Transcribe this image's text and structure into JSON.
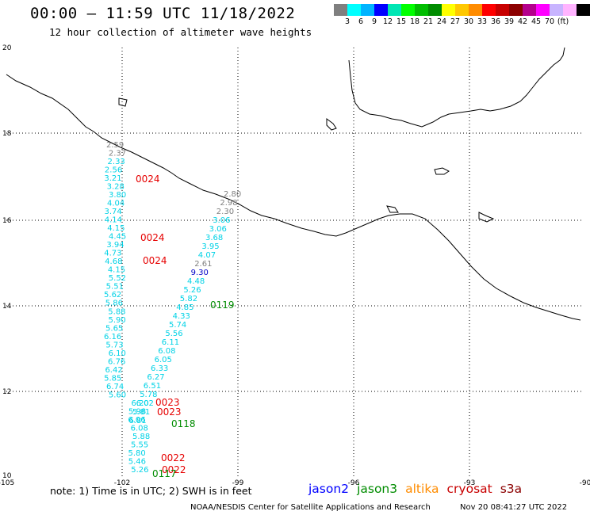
{
  "header": {
    "title": "00:00 – 11:59 UTC 11/18/2022",
    "subtitle": "12 hour collection of altimeter wave heights"
  },
  "legend": {
    "colors": [
      "#7f7f7f",
      "#00ffff",
      "#00b4ff",
      "#0000ff",
      "#00e6b4",
      "#00ff00",
      "#00be00",
      "#008c00",
      "#ffff00",
      "#ffc800",
      "#ff8c00",
      "#ff0000",
      "#c80000",
      "#8c0000",
      "#b4008c",
      "#ff00ff",
      "#c8b4ff",
      "#ffb4ff",
      "#000000"
    ],
    "labels": [
      "3",
      "6",
      "9",
      "12",
      "15",
      "18",
      "21",
      "24",
      "27",
      "30",
      "33",
      "36",
      "39",
      "42",
      "45",
      "70",
      "(ft)"
    ]
  },
  "axes": {
    "x_ticks": [
      "-105",
      "-102",
      "-99",
      "-96",
      "-93",
      "-90"
    ],
    "y_ticks": [
      "20",
      "18",
      "16",
      "14",
      "12",
      "10"
    ]
  },
  "passes": {
    "west_labels": [
      "2.59",
      "2.37",
      "2.33",
      "2.56",
      "3.21",
      "3.28",
      "3.80",
      "4.04",
      "3.74",
      "4.14",
      "4.15",
      "4.45",
      "3.94",
      "4.73",
      "4.68",
      "4.15",
      "5.52",
      "5.51",
      "5.62",
      "5.86",
      "5.88",
      "5.90",
      "5.65",
      "6.16",
      "5.73",
      "6.10",
      "6.76",
      "6.42",
      "5.85",
      "6.74",
      "5.60",
      "6.20",
      "5.98",
      "6.06",
      "6.08",
      "5.88",
      "5.55",
      "5.80",
      "5.46",
      "5.26"
    ],
    "east_labels": [
      "2.80",
      "2.98",
      "2.30",
      "3.06",
      "3.06",
      "3.68",
      "3.95",
      "4.07",
      "2.61",
      "9.30",
      "4.48",
      "5.26",
      "5.82",
      "4.85",
      "4.33",
      "5.74",
      "5.56",
      "6.11",
      "6.08",
      "6.05",
      "6.33",
      "6.27",
      "6.51",
      "5.78",
      "6.02",
      "5.81",
      "6.81"
    ],
    "time_labels": [
      {
        "text": "0024",
        "sat": "cryosat"
      },
      {
        "text": "0024",
        "sat": "cryosat"
      },
      {
        "text": "0024",
        "sat": "cryosat"
      },
      {
        "text": "0119",
        "sat": "jason3"
      },
      {
        "text": "0023",
        "sat": "cryosat"
      },
      {
        "text": "0023",
        "sat": "cryosat"
      },
      {
        "text": "0118",
        "sat": "jason3"
      },
      {
        "text": "0022",
        "sat": "cryosat"
      },
      {
        "text": "0022",
        "sat": "cryosat"
      },
      {
        "text": "0117",
        "sat": "jason3"
      }
    ]
  },
  "footer": {
    "note": "note:  1) Time is in UTC;  2) SWH is in feet",
    "satellites": [
      {
        "name": "jason2",
        "color": "#0000ff"
      },
      {
        "name": "jason3",
        "color": "#008c00"
      },
      {
        "name": "altika",
        "color": "#ff8c00"
      },
      {
        "name": "cryosat",
        "color": "#c80000"
      },
      {
        "name": "s3a",
        "color": "#8c0000"
      }
    ],
    "credit": "NOAA/NESDIS Center for Satellite Applications and Research",
    "timestamp": "Nov 20 08:41:27 UTC 2022"
  }
}
